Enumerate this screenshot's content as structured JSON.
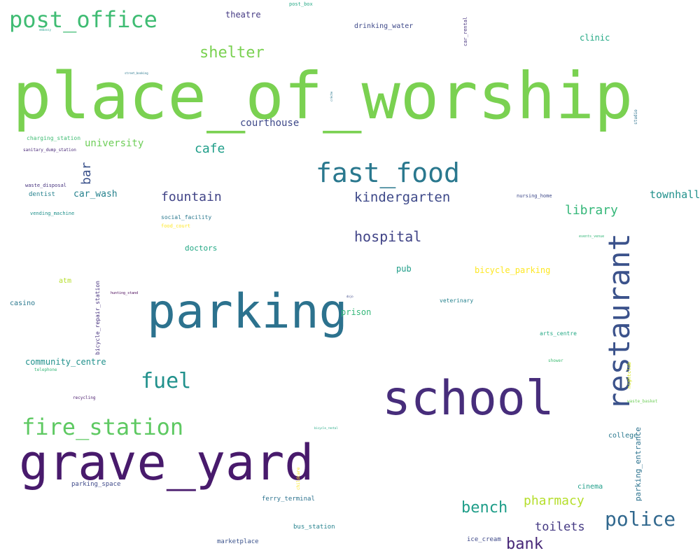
{
  "words": [
    {
      "text": "place_of_worship",
      "color": "#7ad151"
    },
    {
      "text": "parking",
      "color": "#2c728e"
    },
    {
      "text": "school",
      "color": "#472d7b"
    },
    {
      "text": "grave_yard",
      "color": "#481a6c"
    },
    {
      "text": "restaurant",
      "color": "#3b528b"
    },
    {
      "text": "fast_food",
      "color": "#2a788e"
    },
    {
      "text": "fire_station",
      "color": "#5ec962"
    },
    {
      "text": "post_office",
      "color": "#3fbc73"
    },
    {
      "text": "fuel",
      "color": "#21918c"
    },
    {
      "text": "police",
      "color": "#31688e"
    },
    {
      "text": "shelter",
      "color": "#7ad151"
    },
    {
      "text": "bench",
      "color": "#1f9e89"
    },
    {
      "text": "bank",
      "color": "#482878"
    },
    {
      "text": "pharmacy",
      "color": "#b5de2b"
    },
    {
      "text": "toilets",
      "color": "#443983"
    },
    {
      "text": "hospital",
      "color": "#414487"
    },
    {
      "text": "kindergarten",
      "color": "#3e4989"
    },
    {
      "text": "fountain",
      "color": "#414487"
    },
    {
      "text": "library",
      "color": "#35b779"
    },
    {
      "text": "cafe",
      "color": "#1f9e89"
    },
    {
      "text": "townhall",
      "color": "#21918c"
    },
    {
      "text": "bar",
      "color": "#3b528b"
    },
    {
      "text": "courthouse",
      "color": "#3e4989"
    },
    {
      "text": "university",
      "color": "#6ece58"
    },
    {
      "text": "car_wash",
      "color": "#26828e"
    },
    {
      "text": "community_centre",
      "color": "#21918c"
    },
    {
      "text": "clinic",
      "color": "#22a884"
    },
    {
      "text": "theatre",
      "color": "#443983"
    },
    {
      "text": "drinking_water",
      "color": "#3e4989"
    },
    {
      "text": "bicycle_parking",
      "color": "#fde725"
    },
    {
      "text": "pub",
      "color": "#1f9e89"
    },
    {
      "text": "prison",
      "color": "#35b779"
    },
    {
      "text": "doctors",
      "color": "#22a884"
    },
    {
      "text": "casino",
      "color": "#2a788e"
    },
    {
      "text": "atm",
      "color": "#b5de2b"
    },
    {
      "text": "parking_entrance",
      "color": "#2c728e"
    },
    {
      "text": "college",
      "color": "#2a788e"
    },
    {
      "text": "cinema",
      "color": "#1f9e89"
    },
    {
      "text": "ferry_terminal",
      "color": "#2c728e"
    },
    {
      "text": "bus_station",
      "color": "#26828e"
    },
    {
      "text": "marketplace",
      "color": "#3b528b"
    },
    {
      "text": "ice_cream",
      "color": "#3e4989"
    },
    {
      "text": "parking_space",
      "color": "#3e4989"
    },
    {
      "text": "bicycle_repair_station",
      "color": "#46327e"
    },
    {
      "text": "veterinary",
      "color": "#26828e"
    },
    {
      "text": "arts_centre",
      "color": "#22a884"
    },
    {
      "text": "social_facility",
      "color": "#2a788e"
    },
    {
      "text": "food_court",
      "color": "#fde725"
    },
    {
      "text": "charging_station",
      "color": "#3fbc73"
    },
    {
      "text": "sanitary_dump_station",
      "color": "#482878"
    },
    {
      "text": "waste_disposal",
      "color": "#46327e"
    },
    {
      "text": "dentist",
      "color": "#26828e"
    },
    {
      "text": "vending_machine",
      "color": "#21918c"
    },
    {
      "text": "nursing_home",
      "color": "#3e4989"
    },
    {
      "text": "car_rental",
      "color": "#46327e"
    },
    {
      "text": "post_box",
      "color": "#22a884"
    },
    {
      "text": "studio",
      "color": "#2c728e"
    },
    {
      "text": "events_venue",
      "color": "#35b779"
    },
    {
      "text": "hunting_stand",
      "color": "#440154"
    },
    {
      "text": "shower",
      "color": "#3fbc73"
    },
    {
      "text": "nightclub",
      "color": "#d2e21b"
    },
    {
      "text": "waste_basket",
      "color": "#6ece58"
    },
    {
      "text": "recycling",
      "color": "#481a6c"
    },
    {
      "text": "telephone",
      "color": "#35b779"
    },
    {
      "text": "bicycle_rental",
      "color": "#22a884"
    },
    {
      "text": "childcare",
      "color": "#fde725"
    },
    {
      "text": "street_booking",
      "color": "#2a788e"
    },
    {
      "text": "embassy",
      "color": "#1f9e89"
    },
    {
      "text": "dojo",
      "color": "#3e4989"
    },
    {
      "text": "crèche",
      "color": "#2a788e"
    }
  ]
}
